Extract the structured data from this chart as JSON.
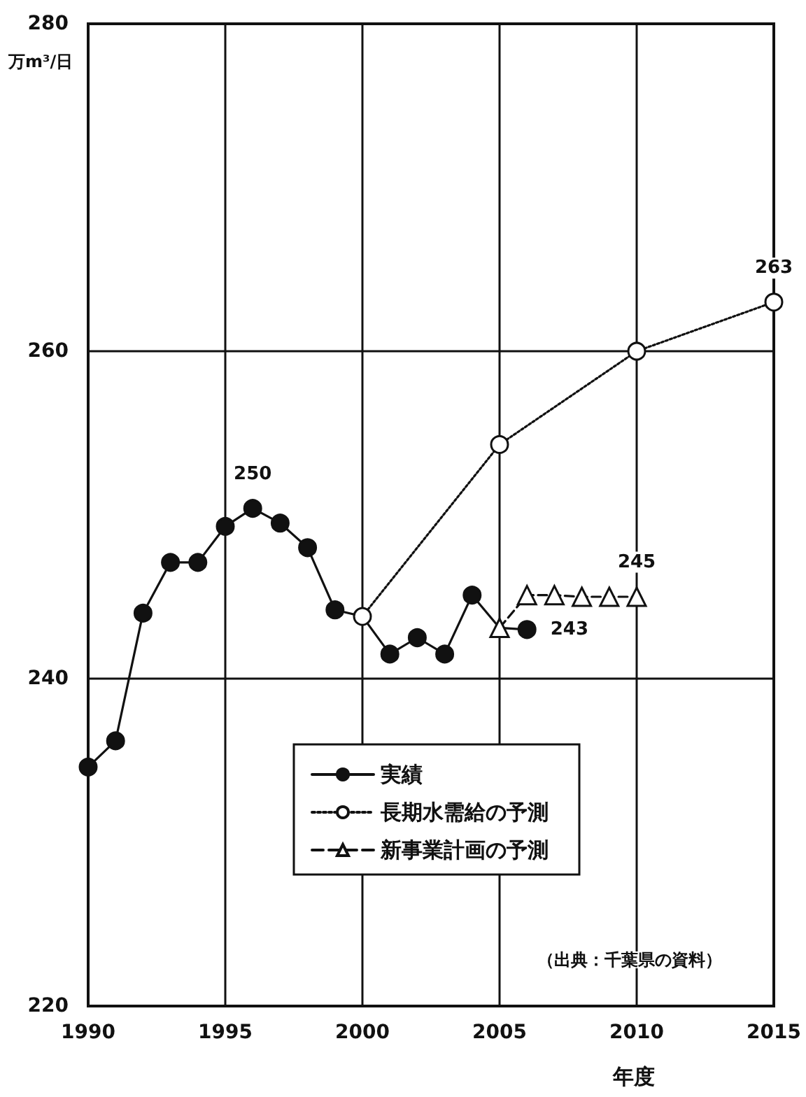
{
  "chart_data": {
    "type": "line",
    "xlabel": "年度",
    "ylabel": "万m³/日",
    "xlim": [
      1990,
      2015
    ],
    "xticks": [
      1990,
      1995,
      2000,
      2005,
      2010,
      2015
    ],
    "ylim": [
      220,
      280
    ],
    "yticks": [
      220,
      240,
      260,
      280
    ],
    "grid": true,
    "legend": "bottom right",
    "annotations": [
      "（出典：千葉県の資料）"
    ],
    "series": [
      {
        "name": "実績",
        "color": "#111111",
        "marker": "circle",
        "line_style": "solid",
        "x": [
          1990,
          1991,
          1992,
          1993,
          1994,
          1995,
          1996,
          1997,
          1998,
          1999,
          2000,
          2001,
          2002,
          2003,
          2004,
          2005,
          2006
        ],
        "values": [
          234.6,
          236.2,
          244.0,
          247.1,
          247.1,
          249.3,
          250.4,
          249.5,
          248.0,
          244.2,
          243.8,
          241.5,
          242.5,
          241.5,
          245.1,
          243.1,
          243.0
        ],
        "value_labels": [
          null,
          null,
          null,
          null,
          null,
          null,
          "250",
          null,
          null,
          null,
          null,
          null,
          null,
          null,
          null,
          null,
          "243"
        ]
      },
      {
        "name": "長期水需給の予測",
        "color": "#111111",
        "marker": "circle",
        "line_style": "dotted",
        "x": [
          2000,
          2005,
          2010,
          2015
        ],
        "values": [
          243.8,
          254.3,
          260,
          263
        ],
        "value_labels": [
          null,
          null,
          null,
          "263"
        ]
      },
      {
        "name": "新事業計画の予測",
        "color": "#111111",
        "marker": "triangle",
        "line_style": "dashed",
        "x": [
          2005,
          2006,
          2007,
          2008,
          2009,
          2010
        ],
        "values": [
          243.1,
          245.1,
          245.1,
          245,
          245,
          245
        ],
        "value_labels": [
          null,
          null,
          null,
          null,
          null,
          "245"
        ]
      }
    ]
  }
}
